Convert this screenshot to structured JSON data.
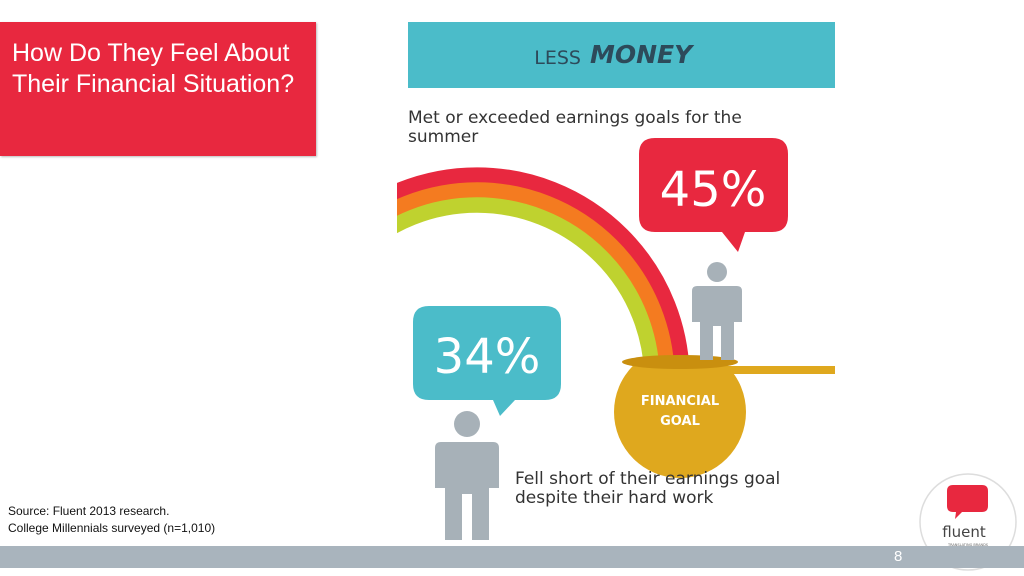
{
  "title": "How Do They Feel About Their Financial Situation?",
  "header": {
    "light": "LESS",
    "bold": "MONEY"
  },
  "top_text": [
    "Met or exceeded earnings goals for the",
    "summer"
  ],
  "top_percent": "45%",
  "goal_label": [
    "FINANCIAL",
    "GOAL"
  ],
  "bottom_percent": "34%",
  "bottom_text": [
    "Fell short of their earnings goal",
    "despite their hard work"
  ],
  "source": [
    "Source: Fluent 2013 research.",
    "College Millennials surveyed (n=1,010)"
  ],
  "page_number": "8",
  "logo": {
    "name": "fluent",
    "tagline": [
      "TRANSLATING BRANDS",
      "FOR THE COLLEGE WORLD"
    ]
  }
}
